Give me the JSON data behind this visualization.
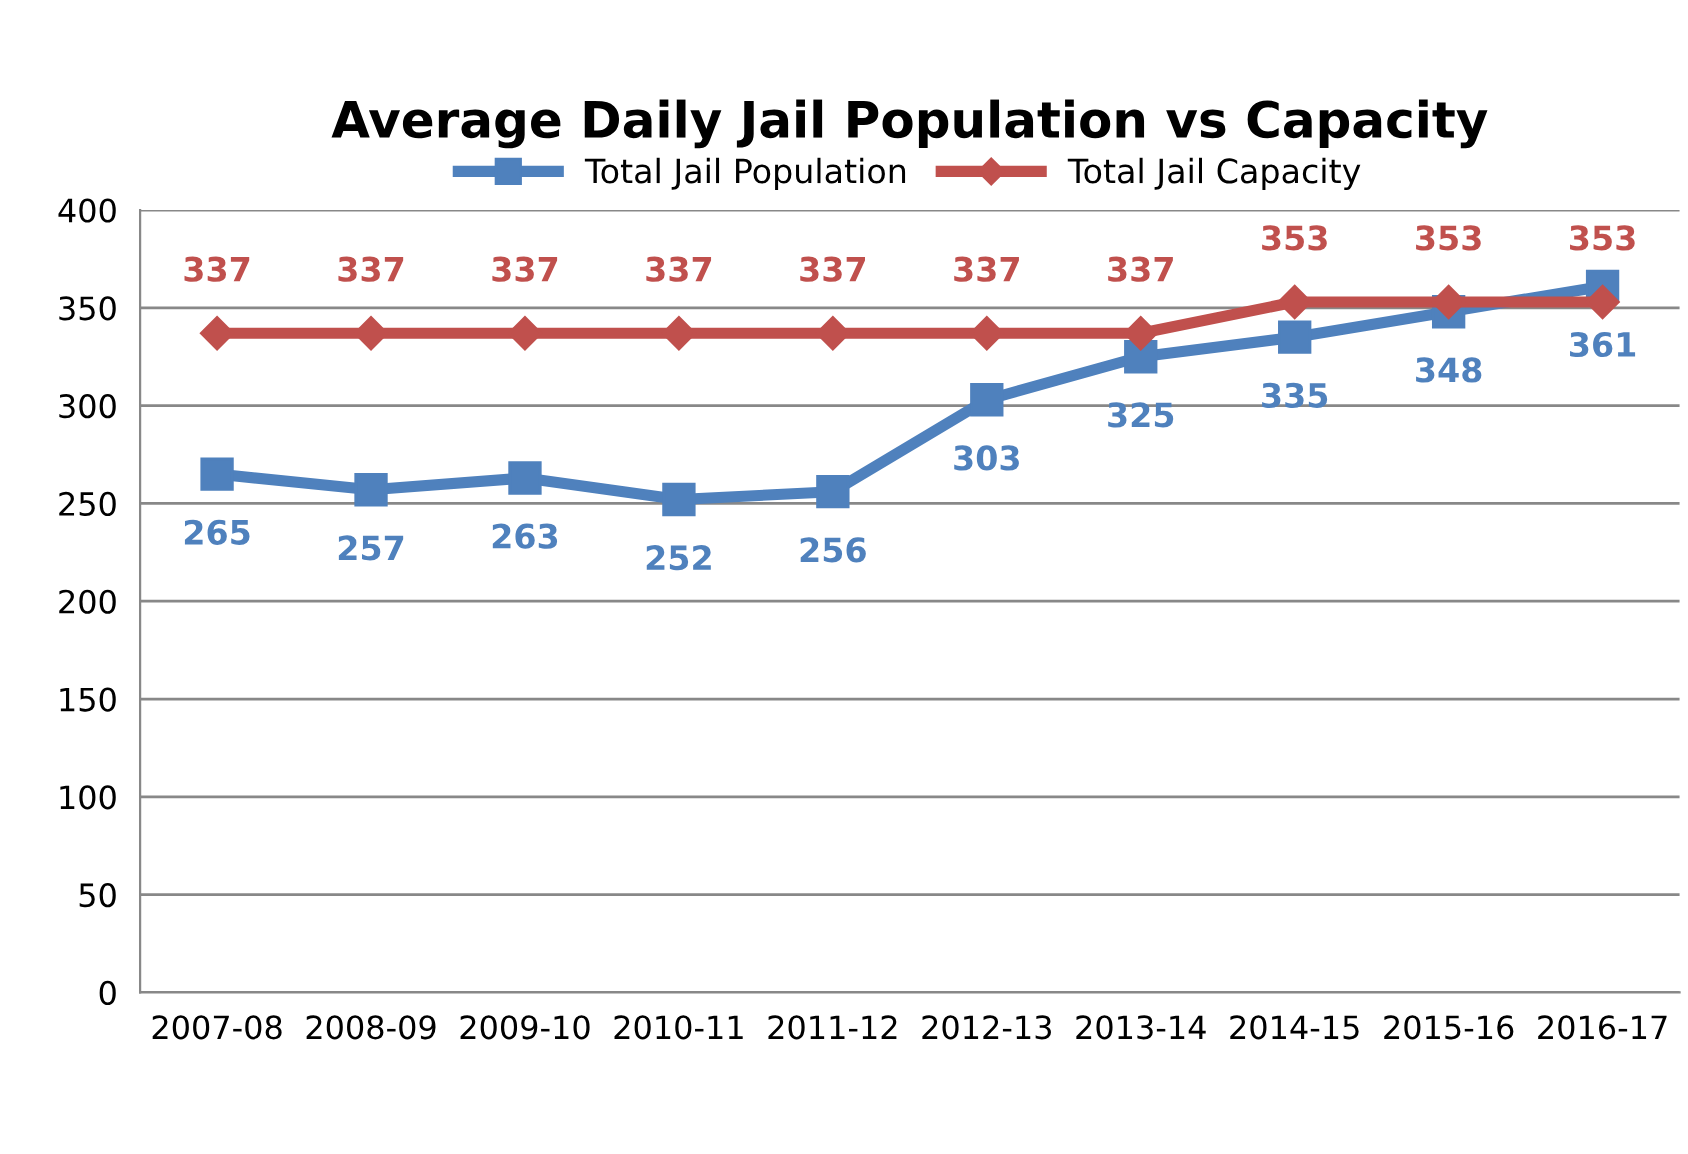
{
  "chart_data": {
    "type": "line",
    "title": "Average Daily Jail Population vs Capacity",
    "categories": [
      "2007-08",
      "2008-09",
      "2009-10",
      "2010-11",
      "2011-12",
      "2012-13",
      "2013-14",
      "2014-15",
      "2015-16",
      "2016-17"
    ],
    "series": [
      {
        "name": "Total Jail Population",
        "color": "#4f81bd",
        "marker": "square",
        "values": [
          265,
          257,
          263,
          252,
          256,
          303,
          325,
          335,
          348,
          361
        ]
      },
      {
        "name": "Total Jail Capacity",
        "color": "#c0504d",
        "marker": "diamond",
        "values": [
          337,
          337,
          337,
          337,
          337,
          337,
          337,
          353,
          353,
          353
        ]
      }
    ],
    "ylim": [
      0,
      400
    ],
    "yticks": [
      0,
      50,
      100,
      150,
      200,
      250,
      300,
      350,
      400
    ],
    "grid": "y",
    "legend": "top",
    "data_labels": true,
    "line_style": "solid"
  }
}
